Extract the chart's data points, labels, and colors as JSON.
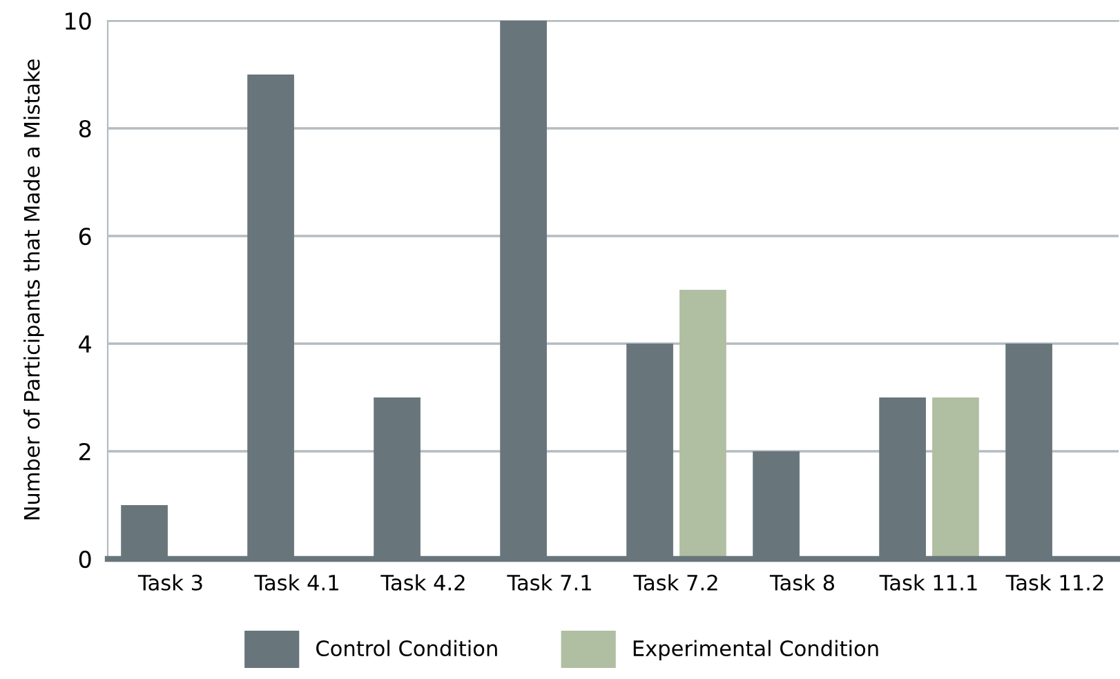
{
  "chart_data": {
    "type": "bar",
    "ylabel": "Number of Participants that Made a Mistake",
    "categories": [
      "Task 3",
      "Task 4.1",
      "Task 4.2",
      "Task 7.1",
      "Task 7.2",
      "Task 8",
      "Task 11.1",
      "Task 11.2"
    ],
    "series": [
      {
        "name": "Control Condition",
        "color": "#68767c",
        "values": [
          1,
          9,
          3,
          10,
          4,
          2,
          3,
          4
        ]
      },
      {
        "name": "Experimental Condition",
        "color": "#b0bea2",
        "values": [
          0,
          0,
          0,
          0,
          5,
          0,
          3,
          0
        ]
      }
    ],
    "ylim": [
      0,
      10
    ],
    "yticks": [
      0,
      2,
      4,
      6,
      8,
      10
    ],
    "grid": "y",
    "legend": "bottom"
  }
}
